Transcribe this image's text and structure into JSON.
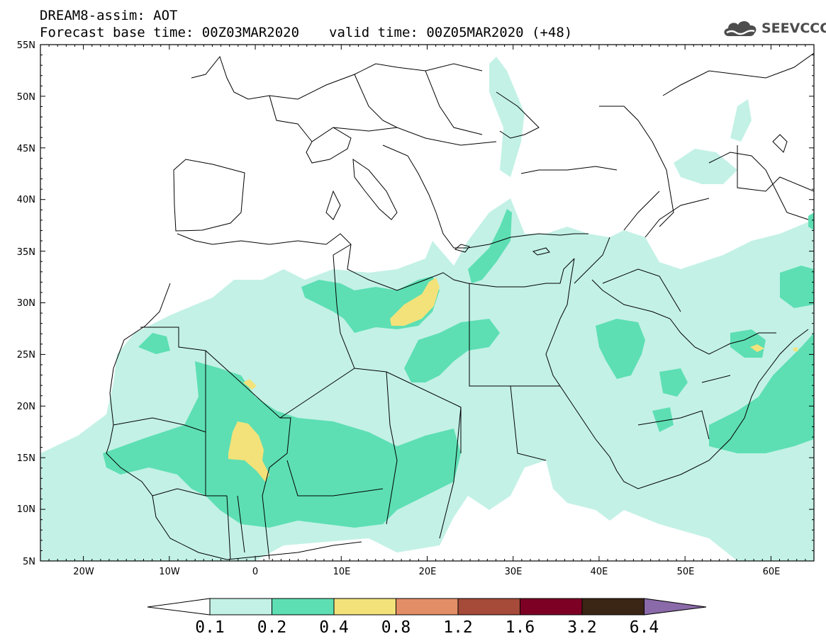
{
  "header": {
    "title_line1": "DREAM8-assim: AOT",
    "base_time": "Forecast base time: 00Z03MAR2020",
    "valid_time": "valid time: 00Z05MAR2020 (+48)"
  },
  "logo": {
    "text": "SEEVCCC",
    "icon": "cloud-logo-icon"
  },
  "map": {
    "lat_labels": [
      "55N",
      "50N",
      "45N",
      "40N",
      "35N",
      "30N",
      "25N",
      "20N",
      "15N",
      "10N",
      "5N"
    ],
    "lon_labels": [
      "20W",
      "10W",
      "0",
      "10E",
      "20E",
      "30E",
      "40E",
      "50E",
      "60E"
    ],
    "extent": {
      "lon_min": -25,
      "lon_max": 65,
      "lat_min": 5,
      "lat_max": 55
    }
  },
  "colorbar": {
    "labels": [
      "0.1",
      "0.2",
      "0.4",
      "0.8",
      "1.2",
      "1.6",
      "3.2",
      "6.4"
    ],
    "colors": [
      "#ffffff",
      "#c3f1e6",
      "#5ddfb3",
      "#f3e27a",
      "#e48e67",
      "#a64a39",
      "#7d0024",
      "#3b2514",
      "#8a6aa8"
    ]
  }
}
